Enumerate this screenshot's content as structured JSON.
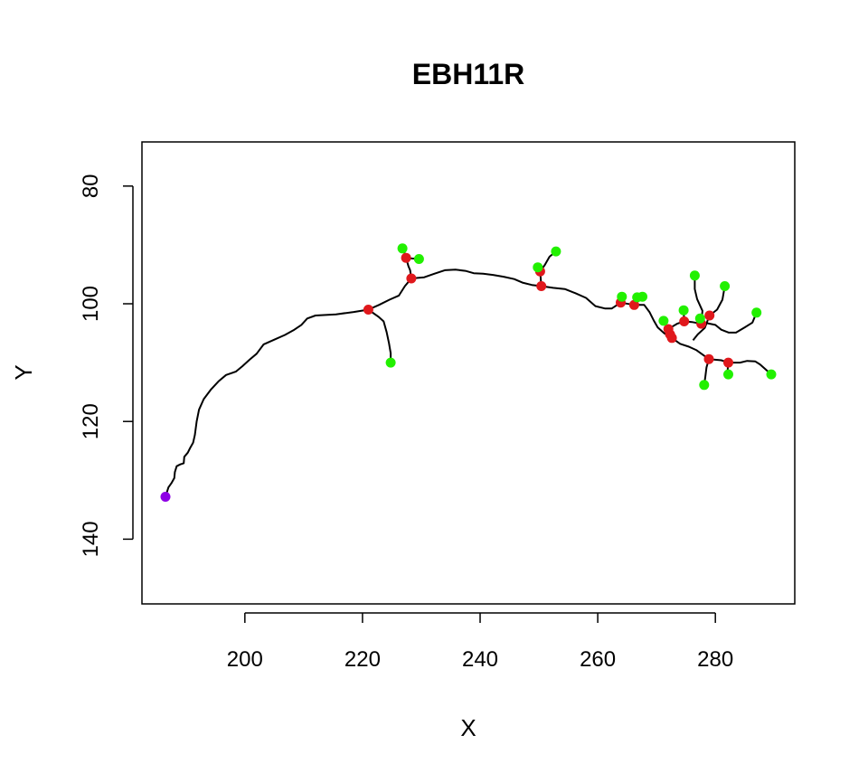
{
  "chart_data": {
    "type": "scatter",
    "title": "EBH11R",
    "xlabel": "X",
    "ylabel": "Y",
    "xlim": [
      182.5,
      293.5
    ],
    "ylim": [
      72.5,
      151
    ],
    "y_reversed": true,
    "x_ticks": [
      200,
      220,
      240,
      260,
      280
    ],
    "y_ticks": [
      80,
      100,
      120,
      140
    ],
    "grid": false,
    "legend": "none",
    "colors": {
      "root": "#8e00e6",
      "branch": "#e0181c",
      "tip": "#22f000",
      "line": "#000000"
    },
    "trace": [
      [
        186.5,
        132.8
      ],
      [
        187.0,
        131.2
      ],
      [
        187.5,
        130.5
      ],
      [
        188.0,
        129.6
      ],
      [
        188.1,
        128.6
      ],
      [
        188.4,
        127.6
      ],
      [
        189.0,
        127.3
      ],
      [
        189.6,
        127.1
      ],
      [
        189.7,
        126.0
      ],
      [
        190.3,
        125.3
      ],
      [
        190.7,
        124.5
      ],
      [
        191.2,
        123.6
      ],
      [
        191.5,
        122.3
      ],
      [
        191.8,
        120.0
      ],
      [
        192.2,
        118.0
      ],
      [
        193.0,
        116.2
      ],
      [
        194.2,
        114.6
      ],
      [
        195.5,
        113.2
      ],
      [
        196.8,
        112.1
      ],
      [
        198.5,
        111.5
      ],
      [
        199.6,
        110.6
      ],
      [
        200.8,
        109.5
      ],
      [
        202.0,
        108.5
      ],
      [
        203.2,
        106.9
      ],
      [
        205.0,
        106.1
      ],
      [
        206.8,
        105.3
      ],
      [
        208.4,
        104.4
      ],
      [
        209.6,
        103.6
      ],
      [
        210.6,
        102.5
      ],
      [
        212.0,
        102.0
      ],
      [
        215.5,
        101.8
      ],
      [
        218.5,
        101.4
      ],
      [
        221.0,
        101.0
      ],
      [
        222.8,
        100.2
      ],
      [
        224.6,
        99.3
      ],
      [
        226.2,
        98.6
      ],
      [
        227.2,
        97.0
      ],
      [
        228.3,
        95.7
      ],
      [
        230.5,
        95.5
      ],
      [
        232.2,
        94.9
      ],
      [
        234.0,
        94.3
      ],
      [
        235.8,
        94.2
      ],
      [
        237.5,
        94.4
      ],
      [
        238.9,
        94.8
      ],
      [
        240.5,
        94.9
      ],
      [
        242.2,
        95.1
      ],
      [
        244.0,
        95.4
      ],
      [
        245.8,
        95.8
      ],
      [
        247.2,
        96.4
      ],
      [
        248.8,
        96.8
      ],
      [
        250.4,
        97.0
      ],
      [
        252.4,
        97.3
      ],
      [
        254.4,
        97.5
      ],
      [
        256.2,
        98.2
      ],
      [
        258.0,
        99.0
      ],
      [
        259.6,
        100.4
      ],
      [
        261.2,
        100.8
      ],
      [
        262.4,
        100.8
      ],
      [
        263.9,
        99.8
      ],
      [
        266.2,
        100.2
      ],
      [
        267.9,
        100.2
      ],
      [
        268.8,
        101.4
      ],
      [
        269.5,
        102.8
      ],
      [
        270.2,
        104.0
      ],
      [
        271.3,
        105.0
      ],
      [
        272.6,
        105.8
      ],
      [
        274.0,
        106.8
      ],
      [
        275.5,
        107.3
      ],
      [
        276.8,
        107.9
      ],
      [
        278.9,
        109.4
      ],
      [
        281.0,
        109.6
      ],
      [
        282.2,
        110.0
      ],
      [
        284.2,
        110.0
      ],
      [
        285.4,
        109.7
      ],
      [
        286.8,
        109.8
      ],
      [
        287.6,
        110.3
      ],
      [
        288.6,
        111.2
      ],
      [
        289.5,
        112.0
      ]
    ],
    "branches": [
      [
        [
          221.0,
          101.0
        ],
        [
          222.7,
          102.2
        ],
        [
          223.6,
          103.0
        ],
        [
          224.1,
          104.8
        ],
        [
          224.5,
          106.7
        ],
        [
          224.8,
          108.4
        ],
        [
          224.8,
          110.0
        ]
      ],
      [
        [
          228.3,
          95.7
        ],
        [
          228.1,
          94.3
        ],
        [
          227.8,
          93.6
        ],
        [
          227.4,
          92.2
        ],
        [
          227.2,
          91.5
        ],
        [
          226.8,
          90.6
        ]
      ],
      [
        [
          227.4,
          92.2
        ],
        [
          228.4,
          92.3
        ],
        [
          229.6,
          92.4
        ],
        [
          228.8,
          92.6
        ]
      ],
      [
        [
          250.4,
          97.0
        ],
        [
          250.2,
          94.5
        ],
        [
          249.8,
          93.8
        ]
      ],
      [
        [
          250.2,
          94.5
        ],
        [
          251.0,
          93.4
        ],
        [
          251.8,
          92.0
        ],
        [
          252.9,
          91.1
        ]
      ],
      [
        [
          263.9,
          99.8
        ],
        [
          264.1,
          98.8
        ]
      ],
      [
        [
          266.2,
          100.2
        ],
        [
          266.7,
          98.9
        ]
      ],
      [
        [
          266.7,
          98.9
        ],
        [
          267.4,
          99.2
        ],
        [
          267.6,
          98.8
        ]
      ],
      [
        [
          272.0,
          104.3
        ],
        [
          271.2,
          102.9
        ]
      ],
      [
        [
          272.3,
          104.1
        ],
        [
          273.5,
          103.4
        ],
        [
          274.7,
          103.0
        ],
        [
          276.0,
          103.1
        ],
        [
          277.6,
          103.4
        ],
        [
          278.6,
          103.3
        ],
        [
          280.0,
          103.6
        ],
        [
          281.0,
          104.4
        ],
        [
          282.3,
          104.9
        ],
        [
          283.5,
          104.9
        ],
        [
          285.0,
          104.0
        ],
        [
          286.3,
          103.2
        ],
        [
          287.0,
          101.5
        ]
      ],
      [
        [
          274.7,
          103.0
        ],
        [
          274.6,
          101.1
        ]
      ],
      [
        [
          277.6,
          103.4
        ],
        [
          277.4,
          102.5
        ]
      ],
      [
        [
          277.6,
          103.4
        ],
        [
          277.8,
          101.2
        ],
        [
          276.9,
          99.2
        ],
        [
          276.5,
          97.5
        ],
        [
          276.5,
          95.2
        ]
      ],
      [
        [
          276.2,
          106.2
        ],
        [
          277.0,
          105.2
        ],
        [
          278.2,
          104.1
        ],
        [
          279.0,
          102.0
        ]
      ],
      [
        [
          279.0,
          102.0
        ],
        [
          280.3,
          101.0
        ],
        [
          281.2,
          99.3
        ],
        [
          281.6,
          97.0
        ]
      ],
      [
        [
          278.9,
          109.4
        ],
        [
          278.5,
          110.8
        ],
        [
          278.3,
          112.4
        ],
        [
          278.1,
          113.8
        ]
      ],
      [
        [
          282.2,
          110.0
        ],
        [
          282.1,
          111.2
        ],
        [
          282.2,
          112.0
        ]
      ],
      [
        [
          272.6,
          105.8
        ],
        [
          272.0,
          104.3
        ]
      ]
    ],
    "points": [
      {
        "type": "root",
        "x": 186.5,
        "y": 132.8
      },
      {
        "type": "branch",
        "x": 221.0,
        "y": 101.0
      },
      {
        "type": "branch",
        "x": 227.4,
        "y": 92.2
      },
      {
        "type": "branch",
        "x": 228.3,
        "y": 95.7
      },
      {
        "type": "branch",
        "x": 250.2,
        "y": 94.5
      },
      {
        "type": "branch",
        "x": 250.4,
        "y": 97.0
      },
      {
        "type": "branch",
        "x": 263.9,
        "y": 99.8
      },
      {
        "type": "branch",
        "x": 266.2,
        "y": 100.2
      },
      {
        "type": "branch",
        "x": 272.0,
        "y": 104.3
      },
      {
        "type": "branch",
        "x": 272.3,
        "y": 105.2
      },
      {
        "type": "branch",
        "x": 272.6,
        "y": 105.8
      },
      {
        "type": "branch",
        "x": 274.7,
        "y": 103.0
      },
      {
        "type": "branch",
        "x": 277.6,
        "y": 103.4
      },
      {
        "type": "branch",
        "x": 279.0,
        "y": 102.0
      },
      {
        "type": "branch",
        "x": 278.9,
        "y": 109.4
      },
      {
        "type": "branch",
        "x": 282.2,
        "y": 110.0
      },
      {
        "type": "tip",
        "x": 224.8,
        "y": 110.0
      },
      {
        "type": "tip",
        "x": 226.8,
        "y": 90.6
      },
      {
        "type": "tip",
        "x": 229.6,
        "y": 92.4
      },
      {
        "type": "tip",
        "x": 249.8,
        "y": 93.8
      },
      {
        "type": "tip",
        "x": 252.9,
        "y": 91.1
      },
      {
        "type": "tip",
        "x": 264.1,
        "y": 98.8
      },
      {
        "type": "tip",
        "x": 266.7,
        "y": 98.9
      },
      {
        "type": "tip",
        "x": 267.6,
        "y": 98.8
      },
      {
        "type": "tip",
        "x": 271.2,
        "y": 102.9
      },
      {
        "type": "tip",
        "x": 274.6,
        "y": 101.1
      },
      {
        "type": "tip",
        "x": 276.5,
        "y": 95.2
      },
      {
        "type": "tip",
        "x": 277.4,
        "y": 102.5
      },
      {
        "type": "tip",
        "x": 281.6,
        "y": 97.0
      },
      {
        "type": "tip",
        "x": 287.0,
        "y": 101.5
      },
      {
        "type": "tip",
        "x": 278.1,
        "y": 113.8
      },
      {
        "type": "tip",
        "x": 282.2,
        "y": 112.0
      },
      {
        "type": "tip",
        "x": 289.5,
        "y": 112.0
      }
    ]
  }
}
